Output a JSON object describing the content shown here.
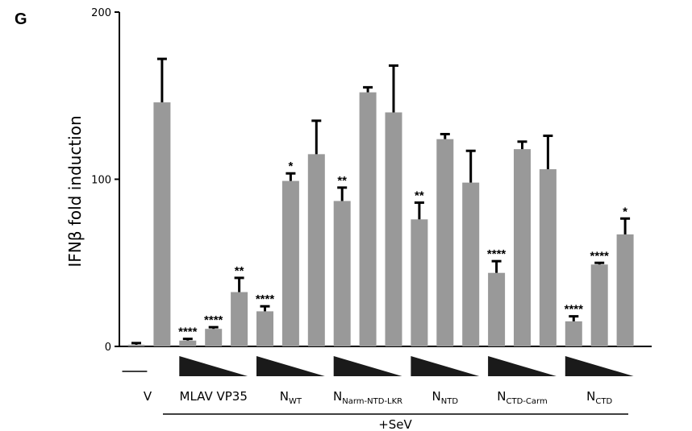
{
  "panel_letter": "G",
  "chart_data": {
    "type": "bar",
    "ylabel": "IFNβ fold induction",
    "ylim": [
      0,
      200
    ],
    "yticks": [
      0,
      100,
      200
    ],
    "bar_color": "#999999",
    "bars": [
      {
        "value": 1,
        "error": 1,
        "sig": ""
      },
      {
        "value": 146,
        "error": 26,
        "sig": ""
      },
      {
        "value": 3.5,
        "error": 1,
        "sig": "****"
      },
      {
        "value": 10.5,
        "error": 1,
        "sig": "****"
      },
      {
        "value": 32.5,
        "error": 8.5,
        "sig": "**"
      },
      {
        "value": 21,
        "error": 3,
        "sig": "****"
      },
      {
        "value": 99,
        "error": 4.5,
        "sig": "*"
      },
      {
        "value": 115,
        "error": 20,
        "sig": ""
      },
      {
        "value": 87,
        "error": 8,
        "sig": "**"
      },
      {
        "value": 152,
        "error": 3,
        "sig": ""
      },
      {
        "value": 140,
        "error": 28,
        "sig": ""
      },
      {
        "value": 76,
        "error": 10,
        "sig": "**"
      },
      {
        "value": 124,
        "error": 3,
        "sig": ""
      },
      {
        "value": 98,
        "error": 19,
        "sig": ""
      },
      {
        "value": 44,
        "error": 7,
        "sig": "****"
      },
      {
        "value": 118,
        "error": 4.5,
        "sig": ""
      },
      {
        "value": 106,
        "error": 20,
        "sig": ""
      },
      {
        "value": 15,
        "error": 3,
        "sig": "****"
      },
      {
        "value": 49,
        "error": 1,
        "sig": "****"
      },
      {
        "value": 67,
        "error": 9.5,
        "sig": "*"
      }
    ],
    "groups": [
      {
        "label": "V",
        "sub": "",
        "start": 0,
        "end": 0,
        "wedge": false
      },
      {
        "label": "MLAV VP35",
        "sub": "",
        "start": 2,
        "end": 4,
        "wedge": true
      },
      {
        "label": "N",
        "sub": "WT",
        "start": 5,
        "end": 7,
        "wedge": true
      },
      {
        "label": "N",
        "sub": "Narm-NTD-LKR",
        "start": 8,
        "end": 10,
        "wedge": true
      },
      {
        "label": "N",
        "sub": "NTD",
        "start": 11,
        "end": 13,
        "wedge": true
      },
      {
        "label": "N",
        "sub": "CTD-Carm",
        "start": 14,
        "end": 16,
        "wedge": true
      },
      {
        "label": "N",
        "sub": "CTD",
        "start": 17,
        "end": 19,
        "wedge": true
      }
    ],
    "bracket_label": "+SeV"
  }
}
